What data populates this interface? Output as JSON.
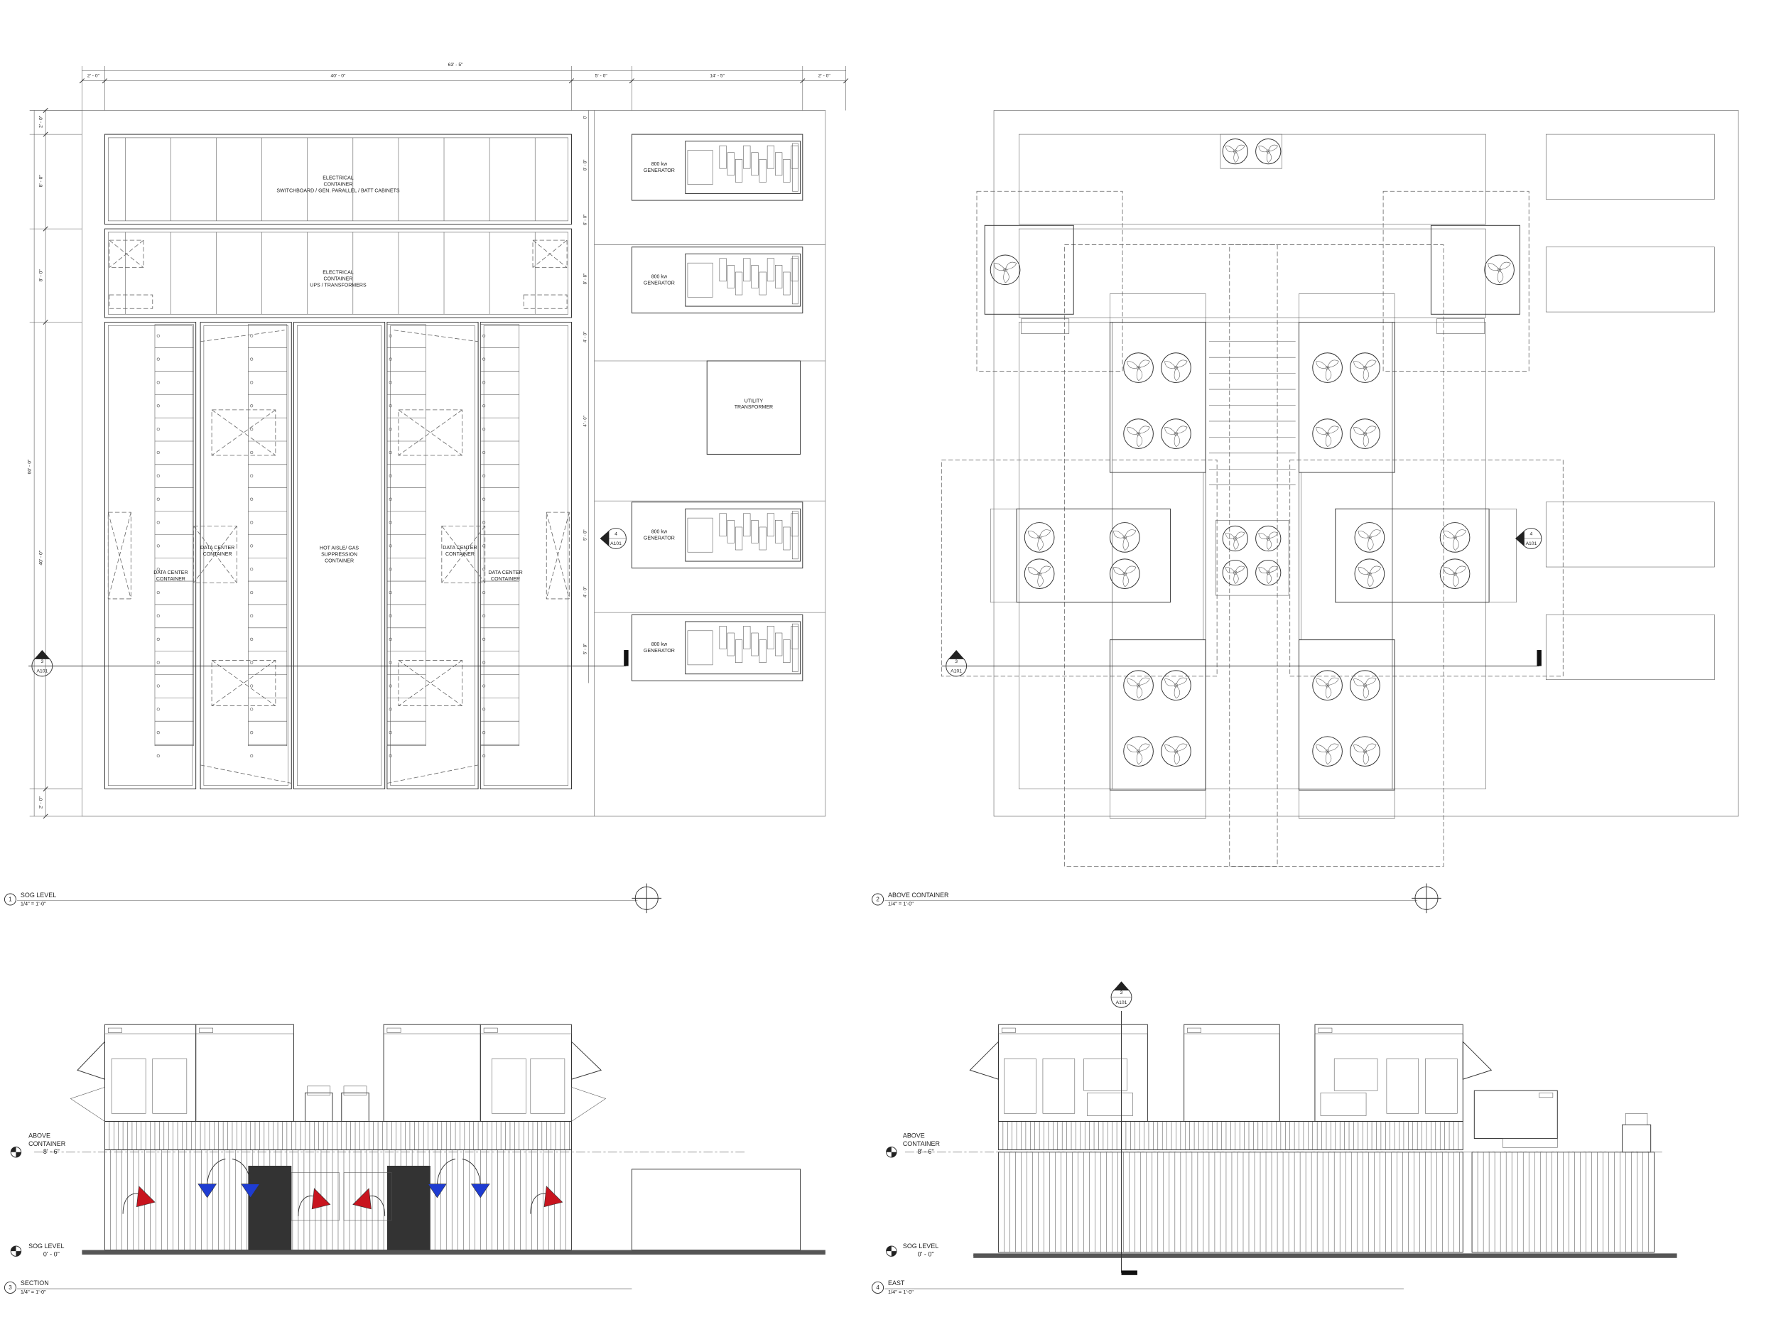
{
  "views": [
    {
      "number": "1",
      "title": "SOG LEVEL",
      "scale": "1/4\" = 1'-0\""
    },
    {
      "number": "2",
      "title": "ABOVE CONTAINER",
      "scale": "1/4\" = 1'-0\""
    },
    {
      "number": "3",
      "title": "SECTION",
      "scale": "1/4\" = 1'-0\""
    },
    {
      "number": "4",
      "title": "EAST",
      "scale": "1/4\" = 1'-0\""
    }
  ],
  "plan": {
    "overall_dimension": "63' - 5\"",
    "top_dimensions": [
      "2' - 0\"",
      "40' - 0\"",
      "5' - 0\"",
      "14' - 5\"",
      "2' - 0\""
    ],
    "left_dimensions": [
      "2' - 0\"",
      "8' - 0\"",
      "8' - 0\"",
      "60' - 0\"",
      "40' - 0\"",
      "2' - 0\""
    ],
    "right_dimensions": [
      "0'",
      "8' - 8\"",
      "6' - 0\"",
      "8' - 8\"",
      "4' - 0\"",
      "4' - 0\"",
      "5' - 8\"",
      "4' - 0\"",
      "5' - 8\""
    ],
    "electrical_switchboard": [
      "ELECTRICAL",
      "CONTAINER",
      "SWITCHBOARD / GEN. PARALLEL / BATT CABINETS"
    ],
    "electrical_ups": [
      "ELECTRICAL",
      "CONTAINER",
      "UPS / TRANSFORMERS"
    ],
    "hot_aisle": [
      "HOT AISLE/ GAS",
      "SUPPRESSION",
      "CONTAINER"
    ],
    "data_center_containers": [
      [
        "DATA CENTER",
        "CONTAINER"
      ],
      [
        "DATA CENTER",
        "CONTAINER"
      ],
      [
        "DATA CENTER",
        "CONTAINER"
      ],
      [
        "DATA CENTER",
        "CONTAINER"
      ]
    ],
    "generators": [
      [
        "800 kw",
        "GENERATOR"
      ],
      [
        "800 kw",
        "GENERATOR"
      ],
      [
        "800 kw",
        "GENERATOR"
      ],
      [
        "800 kw",
        "GENERATOR"
      ]
    ],
    "utility_transformer": [
      "UTILITY",
      "TRANSFORMER"
    ],
    "section_marker": {
      "number": "3",
      "sheet": "A101"
    },
    "elevation_marker": {
      "number": "4",
      "sheet": "A101"
    }
  },
  "above_container": {
    "section_marker": {
      "number": "3",
      "sheet": "A101"
    },
    "elevation_marker": {
      "number": "4",
      "sheet": "A101"
    }
  },
  "section": {
    "levels": [
      {
        "name": [
          "ABOVE",
          "CONTAINER"
        ],
        "elevation": "8' - 6\""
      },
      {
        "name": [
          "SOG LEVEL"
        ],
        "elevation": "0' - 0\""
      }
    ]
  },
  "east": {
    "levels": [
      {
        "name": [
          "ABOVE",
          "CONTAINER"
        ],
        "elevation": "8' - 6\""
      },
      {
        "name": [
          "SOG LEVEL"
        ],
        "elevation": "0' - 0\""
      }
    ],
    "section_marker": {
      "number": "3",
      "sheet": "A101"
    }
  }
}
